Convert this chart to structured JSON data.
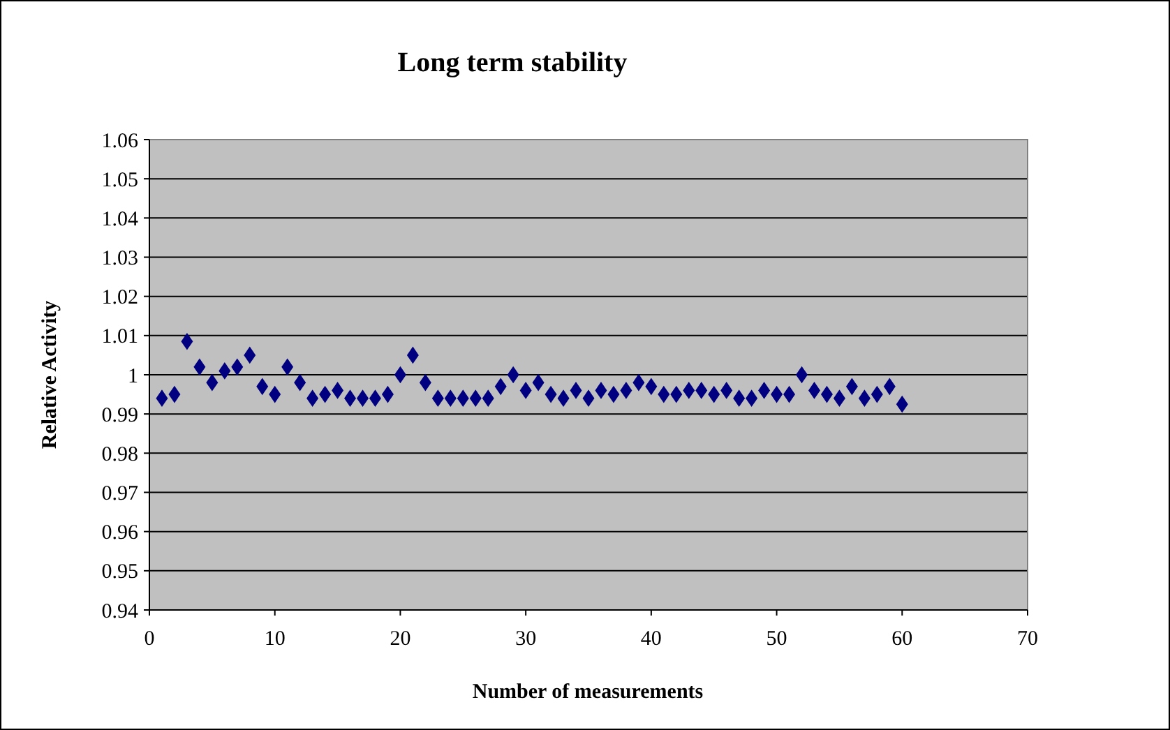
{
  "chart_data": {
    "type": "scatter",
    "title": "Long term stability",
    "xlabel": "Number of measurements",
    "ylabel": "Relative  Activity",
    "x": [
      1,
      2,
      3,
      4,
      5,
      6,
      7,
      8,
      9,
      10,
      11,
      12,
      13,
      14,
      15,
      16,
      17,
      18,
      19,
      20,
      21,
      22,
      23,
      24,
      25,
      26,
      27,
      28,
      29,
      30,
      31,
      32,
      33,
      34,
      35,
      36,
      37,
      38,
      39,
      40,
      41,
      42,
      43,
      44,
      45,
      46,
      47,
      48,
      49,
      50,
      51,
      52,
      53,
      54,
      55,
      56,
      57,
      58,
      59,
      60
    ],
    "series": [
      {
        "color": "#000080",
        "values": [
          0.994,
          0.995,
          1.0085,
          1.002,
          0.998,
          1.001,
          1.002,
          1.005,
          0.997,
          0.995,
          1.002,
          0.998,
          0.994,
          0.995,
          0.996,
          0.994,
          0.994,
          0.994,
          0.995,
          1.0,
          1.005,
          0.998,
          0.994,
          0.994,
          0.994,
          0.994,
          0.994,
          0.997,
          1.0,
          0.996,
          0.998,
          0.995,
          0.994,
          0.996,
          0.994,
          0.996,
          0.995,
          0.996,
          0.998,
          0.997,
          0.995,
          0.995,
          0.996,
          0.996,
          0.995,
          0.996,
          0.994,
          0.994,
          0.996,
          0.995,
          0.995,
          1.0,
          0.996,
          0.995,
          0.994,
          0.997,
          0.994,
          0.995,
          0.997,
          0.9925
        ]
      }
    ],
    "xlim": [
      0,
      70
    ],
    "xticks": [
      0,
      10,
      20,
      30,
      40,
      50,
      60,
      70
    ],
    "ylim": [
      0.94,
      1.06
    ],
    "yticks": [
      {
        "value": 0.94,
        "label": "0.94"
      },
      {
        "value": 0.95,
        "label": "0.95"
      },
      {
        "value": 0.96,
        "label": "0.96"
      },
      {
        "value": 0.97,
        "label": "0.97"
      },
      {
        "value": 0.98,
        "label": "0.98"
      },
      {
        "value": 0.99,
        "label": "0.99"
      },
      {
        "value": 1,
        "label": "1"
      },
      {
        "value": 1.01,
        "label": "1.01"
      },
      {
        "value": 1.02,
        "label": "1.02"
      },
      {
        "value": 1.03,
        "label": "1.03"
      },
      {
        "value": 1.04,
        "label": "1.04"
      },
      {
        "value": 1.05,
        "label": "1.05"
      },
      {
        "value": 1.06,
        "label": "1.06"
      }
    ],
    "grid": "y",
    "marker": "diamond"
  }
}
